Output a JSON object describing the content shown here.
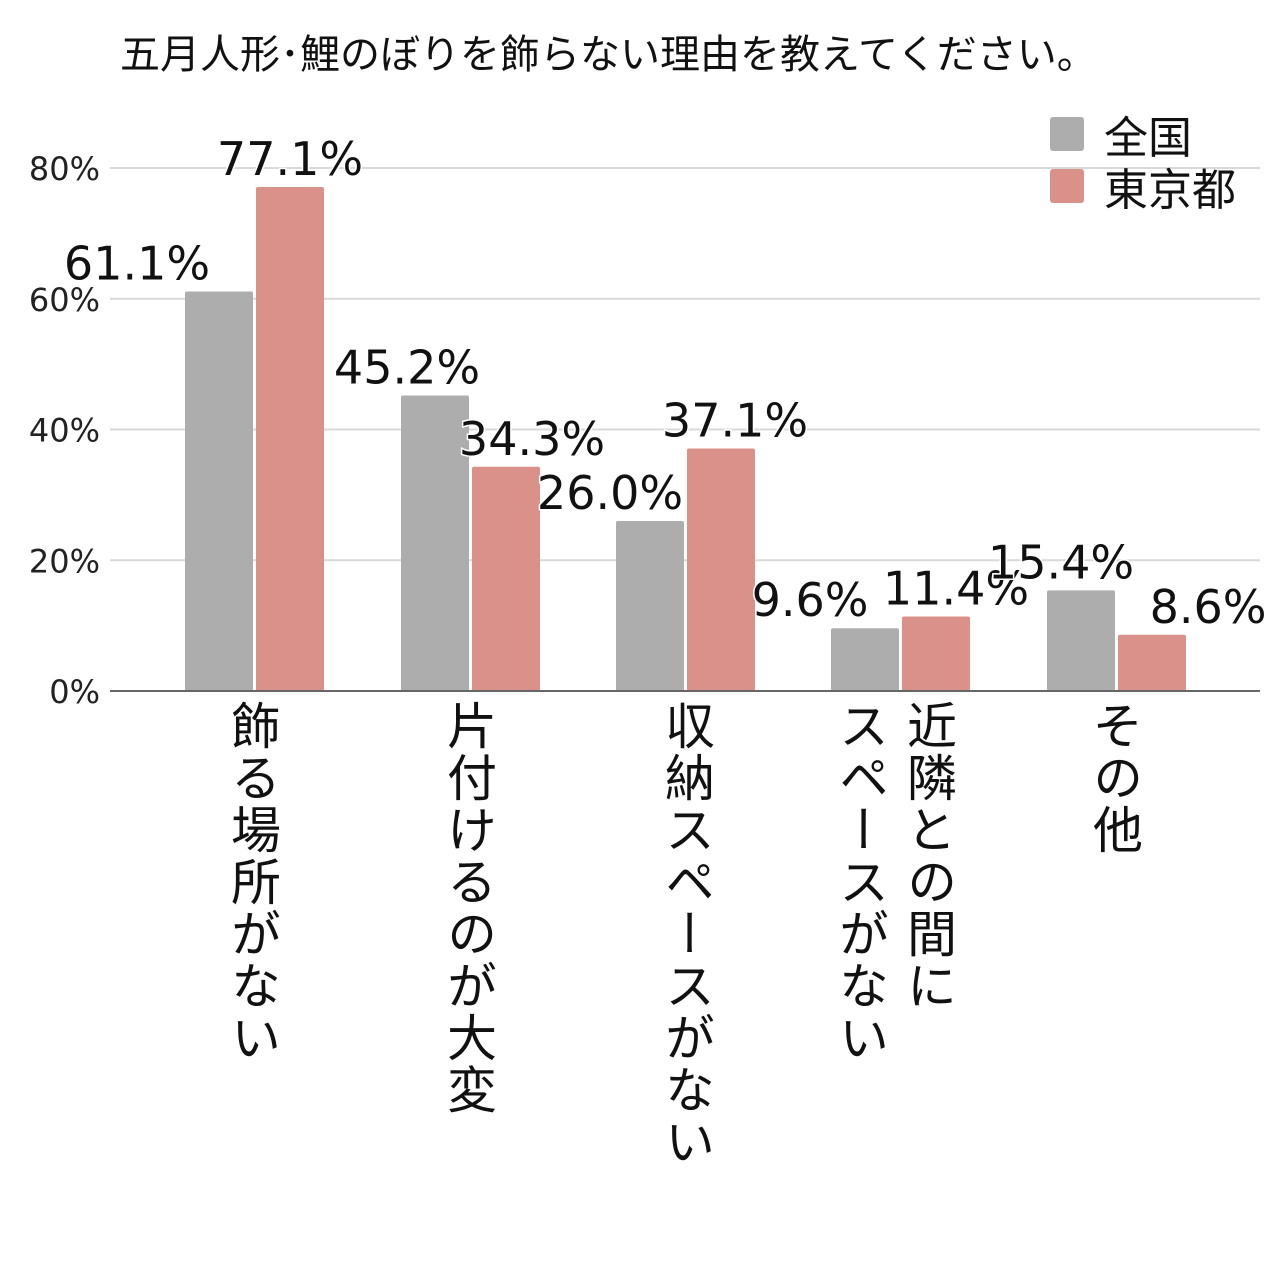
{
  "chart_data": {
    "type": "bar",
    "title": "五月人形･鯉のぼりを飾らない理由を教えてください。",
    "categories": [
      "飾る場所がない",
      "片付けるのが大変",
      "収納スペースがない",
      "近隣との間にスペースがない",
      "その他"
    ],
    "category_lines": [
      [
        "飾る場所がない"
      ],
      [
        "片付けるのが大変"
      ],
      [
        "収納スペースがない"
      ],
      [
        "近隣との間に",
        "スペースがない"
      ],
      [
        "その他"
      ]
    ],
    "series": [
      {
        "name": "全国",
        "color": "#adadad",
        "values": [
          61.1,
          45.2,
          26.0,
          9.6,
          15.4
        ],
        "labels": [
          "61.1%",
          "45.2%",
          "26.0%",
          "9.6%",
          "15.4%"
        ]
      },
      {
        "name": "東京都",
        "color": "#d9918a",
        "values": [
          77.1,
          34.3,
          37.1,
          11.4,
          8.6
        ],
        "labels": [
          "77.1%",
          "34.3%",
          "37.1%",
          "11.4%",
          "8.6%"
        ]
      }
    ],
    "ylim": [
      0,
      80
    ],
    "yticks": [
      0,
      20,
      40,
      60,
      80
    ],
    "ytick_labels": [
      "0%",
      "20%",
      "40%",
      "60%",
      "80%"
    ],
    "xlabel": "",
    "ylabel": "",
    "grid": true,
    "legend_position": "top-right"
  }
}
